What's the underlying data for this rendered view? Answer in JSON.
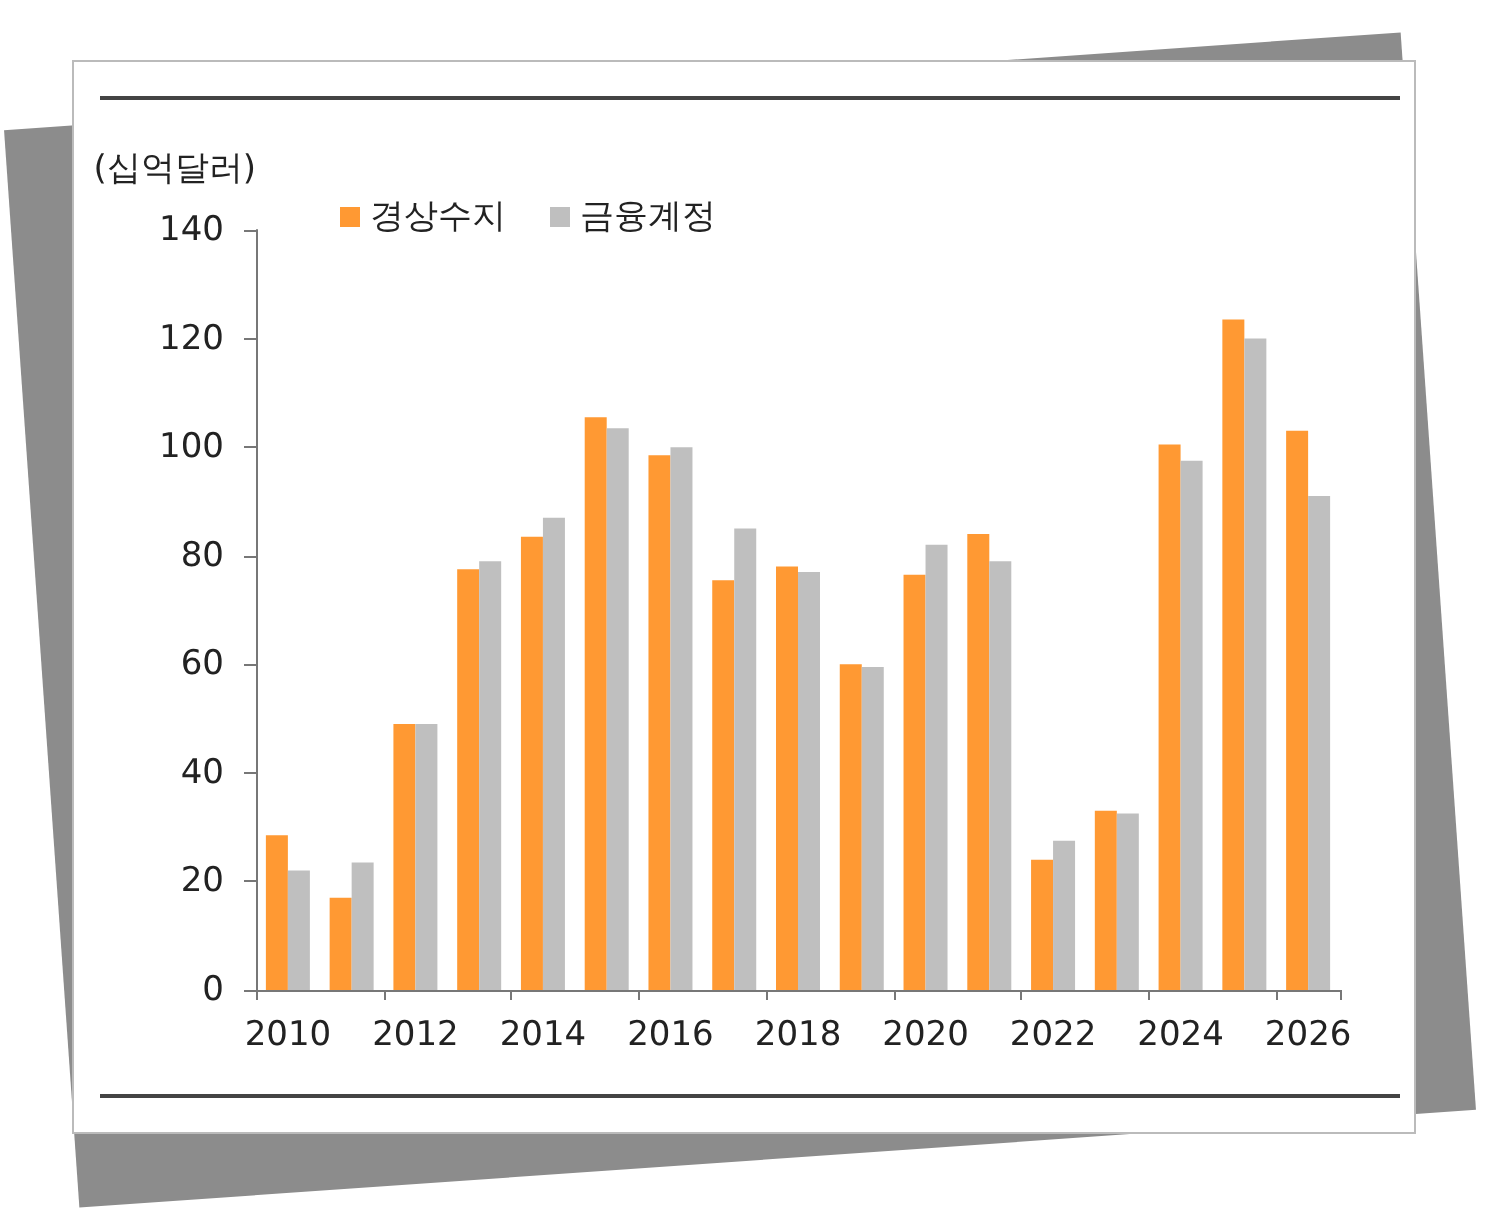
{
  "chart_data": {
    "type": "bar",
    "ylabel": "(십억달러)",
    "categories": [
      "2010",
      null,
      "2012",
      null,
      "2014",
      null,
      "2016",
      null,
      "2018",
      null,
      "2020",
      null,
      "2022",
      null,
      "2024",
      null,
      "2026"
    ],
    "series": [
      {
        "name": "경상수지",
        "color": "#ff9933",
        "values": [
          28.5,
          17,
          49,
          77.5,
          83.5,
          105.5,
          98.5,
          75.5,
          78,
          60,
          76.5,
          84,
          24,
          33,
          100.5,
          123.5,
          103
        ]
      },
      {
        "name": "금융계정",
        "color": "#bfbfbf",
        "values": [
          22,
          23.5,
          49,
          79,
          87,
          103.5,
          100,
          85,
          77,
          59.5,
          82,
          79,
          27.5,
          32.5,
          97.5,
          120,
          91
        ]
      }
    ],
    "ylim": [
      0,
      140
    ],
    "yticks": [
      0,
      20,
      40,
      60,
      80,
      100,
      120,
      140
    ],
    "grid": false,
    "legend": "top left"
  }
}
